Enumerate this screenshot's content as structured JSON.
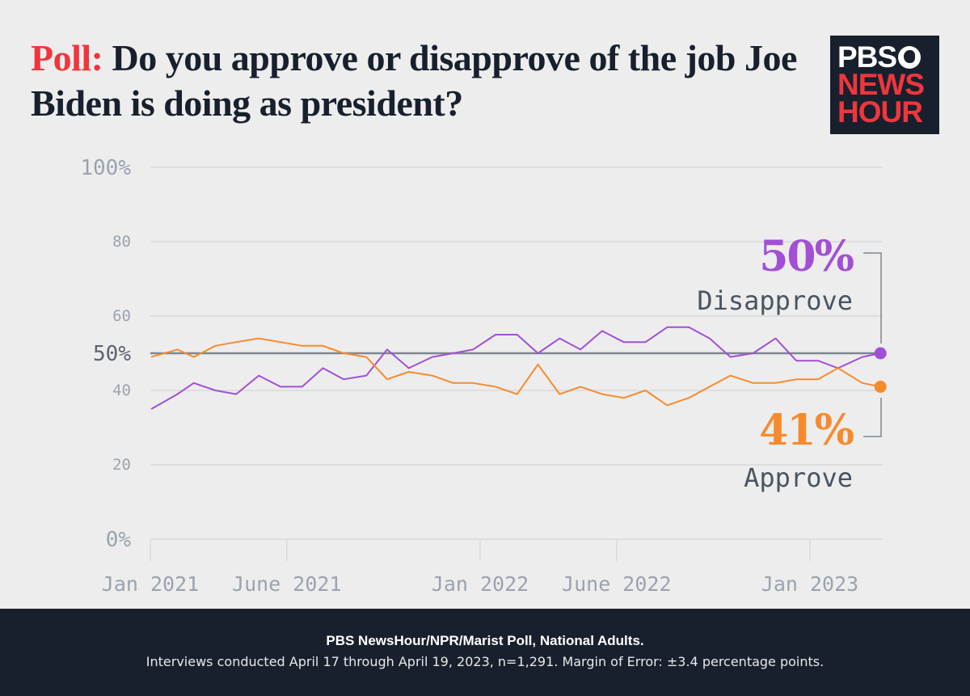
{
  "title": {
    "prefix": "Poll:",
    "text": "Do you approve or disapprove of the job Joe Biden is doing as president?"
  },
  "logo": {
    "line1": "PBS",
    "line2": "NEWS",
    "line3": "HOUR"
  },
  "footer": {
    "source": "PBS NewsHour/NPR/Marist Poll, National Adults.",
    "note": "Interviews conducted April 17 through April 19, 2023, n=1,291. Margin of Error: ±3.4 percentage points."
  },
  "colors": {
    "disapprove": "#a24fd6",
    "approve": "#f68b2e",
    "accent": "#f0363c",
    "navy": "#18202e"
  },
  "chart_data": {
    "type": "line",
    "title": "",
    "xlabel": "",
    "ylabel": "",
    "ylim": [
      0,
      100
    ],
    "grid": true,
    "y_ticks": [
      {
        "v": 100,
        "label": "100%"
      },
      {
        "v": 80,
        "label": "80"
      },
      {
        "v": 60,
        "label": "60"
      },
      {
        "v": 50,
        "label": "50%"
      },
      {
        "v": 40,
        "label": "40"
      },
      {
        "v": 20,
        "label": "20"
      },
      {
        "v": 0,
        "label": "0%"
      }
    ],
    "x_ticks": [
      {
        "date": "2021-01-01",
        "label": "Jan 2021"
      },
      {
        "date": "2021-06-01",
        "label": "June 2021"
      },
      {
        "date": "2022-01-01",
        "label": "Jan 2022"
      },
      {
        "date": "2022-06-01",
        "label": "June 2022"
      },
      {
        "date": "2023-01-01",
        "label": "Jan 2023"
      }
    ],
    "x": [
      "2021-01-02",
      "2021-01-31",
      "2021-02-18",
      "2021-03-14",
      "2021-04-06",
      "2021-05-01",
      "2021-05-25",
      "2021-06-18",
      "2021-07-11",
      "2021-08-03",
      "2021-08-28",
      "2021-09-20",
      "2021-10-14",
      "2021-11-09",
      "2021-12-02",
      "2021-12-24",
      "2022-01-18",
      "2022-02-11",
      "2022-03-06",
      "2022-03-30",
      "2022-04-22",
      "2022-05-16",
      "2022-06-09",
      "2022-07-03",
      "2022-07-27",
      "2022-08-20",
      "2022-09-12",
      "2022-10-05",
      "2022-10-30",
      "2022-11-24",
      "2022-12-17",
      "2023-01-10",
      "2023-02-01",
      "2023-02-28",
      "2023-03-20"
    ],
    "series": [
      {
        "name": "Disapprove",
        "final_label": "50%",
        "values": [
          35,
          39,
          42,
          40,
          39,
          44,
          41,
          41,
          46,
          43,
          44,
          51,
          46,
          49,
          50,
          51,
          55,
          55,
          50,
          54,
          51,
          56,
          53,
          53,
          57,
          57,
          54,
          49,
          50,
          54,
          48,
          48,
          46,
          49,
          50
        ]
      },
      {
        "name": "Approve",
        "final_label": "41%",
        "values": [
          49,
          51,
          49,
          52,
          53,
          54,
          53,
          52,
          52,
          50,
          49,
          43,
          45,
          44,
          42,
          42,
          41,
          39,
          47,
          39,
          41,
          39,
          38,
          40,
          36,
          38,
          41,
          44,
          42,
          42,
          43,
          43,
          46,
          42,
          41
        ]
      }
    ],
    "reference_line": 50
  }
}
